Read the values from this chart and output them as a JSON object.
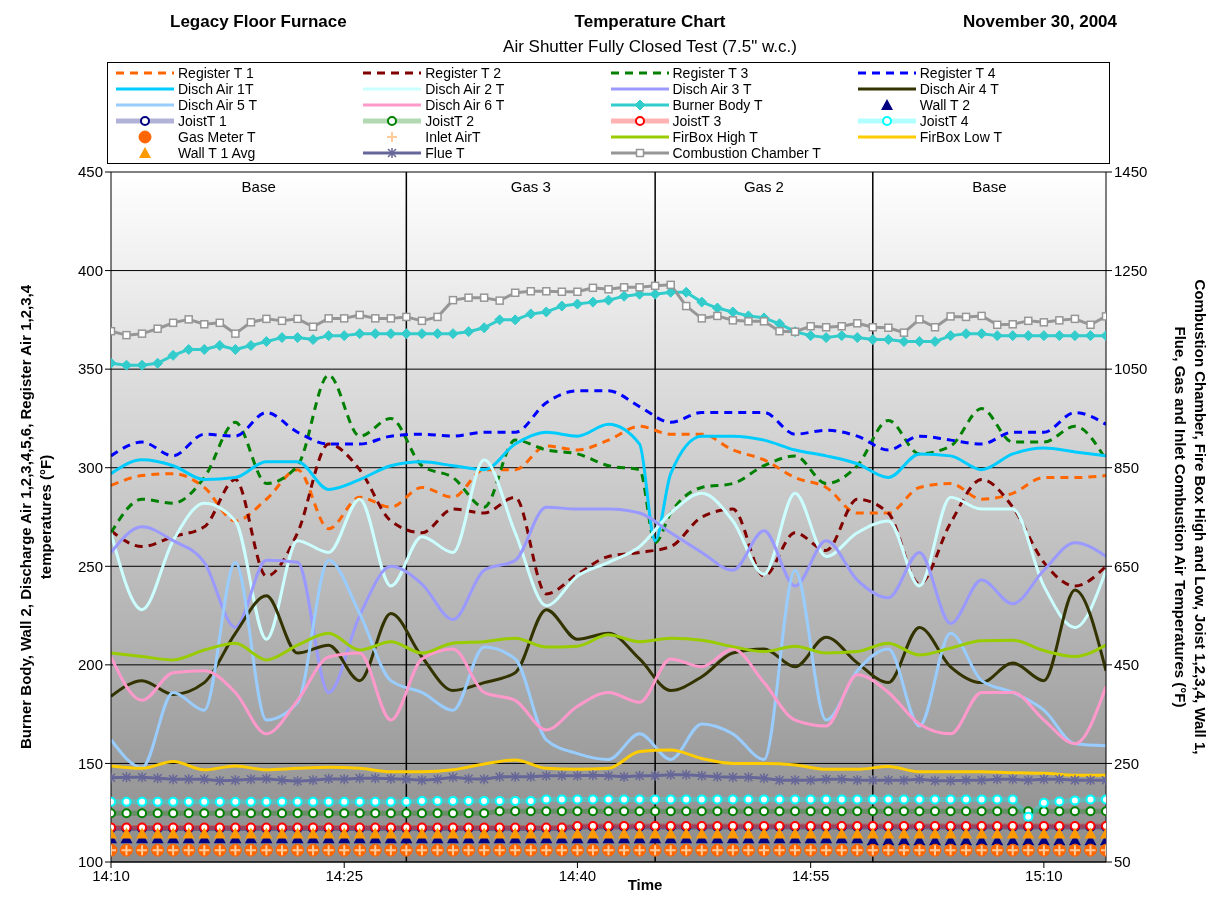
{
  "chart_data": {
    "type": "line",
    "title": "Temperature Chart",
    "subtitle": "Air Shutter Fully Closed Test (7.5\" w.c.)",
    "annotations": [
      "Legacy Floor Furnace",
      "November 30, 2004",
      "Base",
      "Gas 3",
      "Gas 2",
      "Base"
    ],
    "xlabel": "Time",
    "ylabel": "Burner Body, Wall 2, Discharge Air 1,2,3,4,5,6, Register Air 1,2,3,4 temperatures (°F)",
    "y2label": "Combustion Chamber, Fire Box High and Low, Joist 1,2,3,4, Wall 1, Flue, Gas and Inlet Combustion Air Temperatures (°F)",
    "x": [
      14.1667,
      14.1833,
      14.2,
      14.2167,
      14.2333,
      14.25,
      14.2667,
      14.2833,
      14.3,
      14.3167,
      14.3333,
      14.35,
      14.3667,
      14.3833,
      14.4,
      14.4167,
      14.4333,
      14.45,
      14.4667,
      14.4833,
      14.5,
      14.5167,
      14.5333,
      14.55,
      14.5667,
      14.5833,
      14.6,
      14.6167,
      14.6333,
      14.65,
      14.6667,
      14.6833,
      14.7,
      14.7167,
      14.7333,
      14.75,
      14.7667,
      14.7833,
      14.8,
      14.8167,
      14.8333,
      14.85,
      14.8667,
      14.8833,
      14.9,
      14.9167,
      14.9333,
      14.95,
      14.9667,
      14.9833,
      15,
      15.0167,
      15.0333,
      15.05,
      15.0667,
      15.0833,
      15.1,
      15.1167,
      15.1333,
      15.15,
      15.1667,
      15.1833,
      15.2,
      15.2167,
      15.2333
    ],
    "xlim": [
      14.1667,
      15.2333
    ],
    "xticks": [
      {
        "value": 14.1667,
        "label": "14:10"
      },
      {
        "value": 14.4167,
        "label": "14:25"
      },
      {
        "value": 14.6667,
        "label": "14:40"
      },
      {
        "value": 14.9167,
        "label": "14:55"
      },
      {
        "value": 15.1667,
        "label": "15:10"
      }
    ],
    "ylim": [
      100,
      450
    ],
    "yticks": [
      100,
      150,
      200,
      250,
      300,
      350,
      400,
      450
    ],
    "y2lim": [
      50,
      1450
    ],
    "y2ticks": [
      50,
      250,
      450,
      650,
      850,
      1050,
      1250,
      1450
    ],
    "grid": "y",
    "legend": "top",
    "ref_lines": [
      {
        "axis": "x",
        "value": 14.4833
      },
      {
        "axis": "x",
        "value": 14.75
      },
      {
        "axis": "x",
        "value": 14.9833
      }
    ],
    "series": [
      {
        "name": "Register T 1",
        "color": "#ff6600",
        "line_style": "dashed",
        "marker": "none",
        "x": [
          14.1667,
          14.2,
          14.2333,
          14.2667,
          14.3,
          14.3333,
          14.3667,
          14.4,
          14.4333,
          14.4667,
          14.5,
          14.5333,
          14.5667,
          14.6,
          14.6333,
          14.6667,
          14.7,
          14.7333,
          14.7667,
          14.8,
          14.8333,
          14.8667,
          14.9,
          14.9333,
          14.9667,
          15,
          15.0333,
          15.0667,
          15.1,
          15.1333,
          15.1667,
          15.2,
          15.2333
        ],
        "values": [
          291,
          296,
          297,
          290,
          273,
          284,
          299,
          269,
          285,
          280,
          290,
          285,
          299,
          299,
          311,
          309,
          314,
          321,
          317,
          317,
          309,
          304,
          295,
          290,
          277,
          277,
          290,
          292,
          284,
          287,
          295,
          295,
          296
        ]
      },
      {
        "name": "Register T 2",
        "color": "#800000",
        "line_style": "dashed",
        "marker": "none",
        "x": [
          14.1667,
          14.2,
          14.2333,
          14.2667,
          14.3,
          14.3333,
          14.3667,
          14.4,
          14.4333,
          14.4667,
          14.5,
          14.5333,
          14.5667,
          14.6,
          14.6333,
          14.6667,
          14.7,
          14.7333,
          14.7667,
          14.8,
          14.8333,
          14.8667,
          14.9,
          14.9333,
          14.9667,
          15,
          15.0333,
          15.0667,
          15.1,
          15.1333,
          15.1667,
          15.2,
          15.2333
        ],
        "values": [
          268,
          260,
          265,
          270,
          294,
          245,
          267,
          312,
          299,
          273,
          267,
          279,
          277,
          285,
          236,
          246,
          255,
          257,
          260,
          275,
          279,
          245,
          267,
          258,
          284,
          277,
          241,
          272,
          294,
          280,
          252,
          240,
          250
        ]
      },
      {
        "name": "Register T 3",
        "color": "#008000",
        "line_style": "dashed",
        "marker": "none",
        "x": [
          14.1667,
          14.2,
          14.2333,
          14.2667,
          14.3,
          14.3333,
          14.3667,
          14.4,
          14.4333,
          14.4667,
          14.5,
          14.5333,
          14.5667,
          14.6,
          14.6333,
          14.6667,
          14.7,
          14.7333,
          14.75,
          14.7667,
          14.8,
          14.8333,
          14.8667,
          14.9,
          14.9333,
          14.9667,
          15,
          15.0333,
          15.0667,
          15.1,
          15.1333,
          15.1667,
          15.2,
          15.2333
        ],
        "values": [
          267,
          284,
          282,
          295,
          323,
          292,
          301,
          347,
          316,
          325,
          301,
          295,
          280,
          314,
          309,
          307,
          301,
          299,
          262,
          277,
          290,
          292,
          301,
          306,
          292,
          301,
          324,
          307,
          311,
          330,
          313,
          313,
          321,
          304
        ]
      },
      {
        "name": "Register T 4",
        "color": "#0000ff",
        "line_style": "dashed",
        "marker": "none",
        "x": [
          14.1667,
          14.2,
          14.2333,
          14.2667,
          14.3,
          14.3333,
          14.3667,
          14.4,
          14.4333,
          14.4667,
          14.5,
          14.5333,
          14.5667,
          14.6,
          14.6333,
          14.6667,
          14.7,
          14.7333,
          14.7667,
          14.8,
          14.8333,
          14.8667,
          14.9,
          14.9333,
          14.9667,
          15,
          15.0333,
          15.0667,
          15.1,
          15.1333,
          15.1667,
          15.2,
          15.2333
        ],
        "values": [
          306,
          313,
          306,
          317,
          316,
          328,
          318,
          312,
          312,
          316,
          317,
          316,
          318,
          318,
          333,
          339,
          339,
          331,
          323,
          328,
          328,
          328,
          317,
          319,
          316,
          309,
          316,
          314,
          312,
          318,
          318,
          328,
          322
        ]
      },
      {
        "name": "Disch Air 1T",
        "color": "#00ccff",
        "marker": "none",
        "x": [
          14.1667,
          14.2,
          14.2333,
          14.2667,
          14.3,
          14.3333,
          14.3667,
          14.4,
          14.4333,
          14.4667,
          14.5,
          14.5333,
          14.5667,
          14.6,
          14.6333,
          14.6667,
          14.7,
          14.7333,
          14.75,
          14.7667,
          14.8,
          14.8333,
          14.8667,
          14.9,
          14.9333,
          14.9667,
          15,
          15.0333,
          15.0667,
          15.1,
          15.1333,
          15.1667,
          15.2,
          15.2333
        ],
        "values": [
          297,
          304,
          301,
          294,
          295,
          303,
          303,
          289,
          294,
          301,
          303,
          301,
          299,
          312,
          318,
          316,
          322,
          312,
          263,
          297,
          316,
          316,
          314,
          309,
          306,
          302,
          295,
          307,
          306,
          299,
          307,
          310,
          308,
          306
        ]
      },
      {
        "name": "Disch Air 2 T",
        "color": "#ccffff",
        "marker": "none",
        "x": [
          14.1667,
          14.2,
          14.2333,
          14.2667,
          14.3,
          14.3333,
          14.3667,
          14.4,
          14.4333,
          14.4667,
          14.5,
          14.5333,
          14.5667,
          14.6,
          14.6333,
          14.6667,
          14.7,
          14.7333,
          14.7667,
          14.8,
          14.8333,
          14.8667,
          14.9,
          14.9333,
          14.9667,
          15,
          15.0333,
          15.0667,
          15.1,
          15.1333,
          15.1667,
          15.2,
          15.2333
        ],
        "values": [
          267,
          228,
          263,
          282,
          273,
          213,
          263,
          257,
          284,
          240,
          265,
          257,
          304,
          267,
          230,
          245,
          252,
          260,
          277,
          287,
          273,
          246,
          287,
          255,
          267,
          273,
          240,
          285,
          279,
          279,
          240,
          219,
          248
        ]
      },
      {
        "name": "Disch Air 3 T",
        "color": "#9999ff",
        "marker": "none",
        "x": [
          14.1667,
          14.2,
          14.2333,
          14.2667,
          14.3,
          14.3333,
          14.3667,
          14.4,
          14.4333,
          14.4667,
          14.5,
          14.5333,
          14.5667,
          14.6,
          14.6333,
          14.6667,
          14.7,
          14.7333,
          14.7667,
          14.8,
          14.8333,
          14.8667,
          14.9,
          14.9333,
          14.9667,
          15,
          15.0333,
          15.0667,
          15.1,
          15.1333,
          15.1667,
          15.2,
          15.2333
        ],
        "values": [
          257,
          270,
          263,
          252,
          219,
          253,
          252,
          186,
          225,
          250,
          241,
          223,
          248,
          253,
          280,
          279,
          279,
          277,
          267,
          257,
          248,
          268,
          240,
          263,
          243,
          234,
          257,
          221,
          243,
          231,
          248,
          262,
          255
        ]
      },
      {
        "name": "Disch Air 4 T",
        "color": "#333300",
        "marker": "none",
        "x": [
          14.1667,
          14.2,
          14.2333,
          14.2667,
          14.3,
          14.3333,
          14.3667,
          14.4,
          14.4333,
          14.4667,
          14.5,
          14.5333,
          14.5667,
          14.6,
          14.6333,
          14.6667,
          14.7,
          14.7333,
          14.7667,
          14.8,
          14.8333,
          14.8667,
          14.9,
          14.9333,
          14.9667,
          15,
          15.0333,
          15.0667,
          15.1,
          15.1333,
          15.1667,
          15.2,
          15.2333
        ],
        "values": [
          184,
          192,
          185,
          191,
          216,
          235,
          206,
          210,
          192,
          226,
          204,
          187,
          191,
          196,
          228,
          213,
          216,
          203,
          187,
          194,
          206,
          208,
          199,
          214,
          201,
          191,
          219,
          199,
          191,
          201,
          192,
          238,
          197
        ]
      },
      {
        "name": "Disch Air 5 T",
        "color": "#99ccff",
        "marker": "none",
        "x": [
          14.1667,
          14.2,
          14.2333,
          14.2667,
          14.3,
          14.3333,
          14.3667,
          14.4,
          14.4333,
          14.4667,
          14.5,
          14.5333,
          14.5667,
          14.6,
          14.6333,
          14.6667,
          14.7,
          14.7333,
          14.7667,
          14.8,
          14.8333,
          14.8667,
          14.9,
          14.9333,
          14.9667,
          15,
          15.0333,
          15.0667,
          15.1,
          15.1333,
          15.1667,
          15.2,
          15.2333
        ],
        "values": [
          162,
          148,
          186,
          177,
          252,
          172,
          181,
          253,
          226,
          192,
          186,
          177,
          209,
          203,
          162,
          155,
          152,
          165,
          152,
          170,
          165,
          152,
          248,
          172,
          197,
          208,
          169,
          216,
          192,
          186,
          177,
          160,
          159
        ]
      },
      {
        "name": "Disch Air 6 T",
        "color": "#ff99cc",
        "marker": "none",
        "x": [
          14.1667,
          14.2,
          14.2333,
          14.2667,
          14.3,
          14.3333,
          14.3667,
          14.4,
          14.4333,
          14.4667,
          14.5,
          14.5333,
          14.5667,
          14.6,
          14.6333,
          14.6667,
          14.7,
          14.7333,
          14.7667,
          14.8,
          14.8333,
          14.8667,
          14.9,
          14.9333,
          14.9667,
          15,
          15.0333,
          15.0667,
          15.1,
          15.1333,
          15.1667,
          15.2,
          15.2333
        ],
        "values": [
          204,
          182,
          196,
          197,
          186,
          165,
          182,
          204,
          206,
          172,
          203,
          208,
          186,
          182,
          167,
          179,
          186,
          181,
          203,
          199,
          208,
          191,
          172,
          169,
          195,
          186,
          170,
          165,
          186,
          186,
          172,
          160,
          189
        ]
      },
      {
        "name": "Burner Body T",
        "color": "#33cccc",
        "marker": "diamond",
        "values": [
          353,
          352,
          352,
          353,
          357,
          360,
          360,
          362,
          360,
          362,
          364,
          366,
          366,
          365,
          367,
          367,
          368,
          368,
          368,
          368,
          368,
          368,
          368,
          369,
          371,
          375,
          375,
          378,
          379,
          382,
          383,
          384,
          385,
          387,
          388,
          388,
          389,
          389,
          384,
          381,
          379,
          377,
          376,
          373,
          369,
          367,
          366,
          367,
          366,
          365,
          365,
          364,
          364,
          364,
          367,
          368,
          368,
          367,
          367,
          367,
          367,
          367,
          367,
          367,
          367
        ]
      },
      {
        "name": "Wall T 2",
        "type": "scatter",
        "color": "#000080",
        "marker": "triangle",
        "values": [
          112,
          112,
          112,
          112,
          112,
          112,
          112,
          112,
          112,
          112,
          112,
          112,
          112,
          112,
          112,
          112,
          112,
          112,
          112,
          112,
          112,
          112,
          112,
          112,
          112,
          112,
          112,
          112,
          112,
          112,
          112,
          112,
          112,
          112,
          112,
          112,
          112,
          112,
          112,
          112,
          112,
          112,
          112,
          112,
          112,
          112,
          112,
          112,
          112,
          111,
          111,
          111,
          111,
          111,
          111,
          111,
          111,
          111,
          111,
          111,
          111,
          111,
          111,
          111,
          111
        ]
      },
      {
        "name": "JoistT 1",
        "color": "#000080",
        "marker": "circle",
        "axis": "y2",
        "values": [
          118,
          118,
          118,
          118,
          118,
          118,
          118,
          118,
          118,
          118,
          118,
          118,
          118,
          118,
          118,
          118,
          118,
          118,
          118,
          118,
          118,
          118,
          118,
          118,
          118,
          118,
          118,
          118,
          118,
          118,
          121,
          121,
          121,
          121,
          121,
          121,
          121,
          121,
          121,
          121,
          121,
          121,
          121,
          121,
          121,
          121,
          121,
          121,
          121,
          121,
          121,
          121,
          121,
          121,
          121,
          121,
          121,
          121,
          121,
          121,
          121,
          121,
          121,
          121,
          121
        ]
      },
      {
        "name": "JoistT 2",
        "color": "#008000",
        "marker": "circle",
        "axis": "y2",
        "values": [
          149,
          149,
          149,
          149,
          149,
          149,
          149,
          149,
          149,
          149,
          149,
          149,
          149,
          149,
          149,
          149,
          149,
          149,
          149,
          149,
          149,
          149,
          149,
          149,
          149,
          153,
          153,
          153,
          153,
          153,
          153,
          153,
          153,
          153,
          153,
          153,
          153,
          153,
          153,
          153,
          153,
          153,
          153,
          153,
          153,
          153,
          153,
          153,
          153,
          153,
          153,
          153,
          153,
          153,
          153,
          153,
          153,
          153,
          153,
          153,
          153,
          153,
          153,
          153,
          153
        ]
      },
      {
        "name": "JoistT 3",
        "color": "#ff0000",
        "marker": "circle",
        "axis": "y2",
        "values": [
          120,
          120,
          120,
          120,
          120,
          120,
          120,
          120,
          120,
          120,
          120,
          120,
          120,
          120,
          120,
          120,
          120,
          120,
          120,
          120,
          120,
          120,
          120,
          120,
          120,
          120,
          120,
          120,
          120,
          120,
          123,
          123,
          123,
          123,
          123,
          123,
          123,
          123,
          123,
          123,
          123,
          123,
          123,
          123,
          123,
          123,
          123,
          123,
          123,
          123,
          123,
          123,
          123,
          123,
          123,
          123,
          123,
          123,
          123,
          123,
          123,
          123,
          123,
          123,
          123
        ]
      },
      {
        "name": "JoistT 4",
        "color": "#00ffff",
        "marker": "circle",
        "axis": "y2",
        "values": [
          172,
          172,
          172,
          172,
          172,
          172,
          172,
          172,
          172,
          172,
          172,
          172,
          172,
          172,
          172,
          172,
          172,
          172,
          172,
          172,
          174,
          174,
          174,
          174,
          174,
          174,
          174,
          174,
          177,
          177,
          177,
          177,
          177,
          177,
          177,
          177,
          177,
          177,
          177,
          177,
          177,
          177,
          177,
          177,
          177,
          177,
          177,
          177,
          177,
          177,
          177,
          177,
          177,
          177,
          177,
          177,
          177,
          177,
          177,
          142,
          170,
          173,
          175,
          177,
          177
        ]
      },
      {
        "name": "Gas Meter T",
        "type": "scatter",
        "color": "#ff6600",
        "marker": "circle",
        "axis": "y2",
        "values": [
          74,
          74,
          74,
          74,
          74,
          74,
          74,
          74,
          74,
          74,
          74,
          74,
          74,
          74,
          74,
          74,
          74,
          74,
          74,
          74,
          74,
          74,
          74,
          74,
          74,
          74,
          74,
          74,
          74,
          74,
          74,
          74,
          74,
          74,
          74,
          74,
          74,
          74,
          74,
          74,
          74,
          74,
          74,
          74,
          74,
          74,
          74,
          74,
          74,
          74,
          74,
          74,
          74,
          74,
          74,
          74,
          74,
          74,
          74,
          74,
          74,
          74,
          74,
          74,
          74
        ]
      },
      {
        "name": "Inlet AirT",
        "type": "scatter",
        "color": "#ffcc99",
        "marker": "cross",
        "axis": "y2",
        "values": [
          74,
          74,
          74,
          74,
          74,
          74,
          74,
          74,
          74,
          74,
          74,
          74,
          74,
          74,
          74,
          74,
          74,
          74,
          74,
          74,
          74,
          74,
          74,
          74,
          74,
          74,
          74,
          74,
          74,
          74,
          74,
          74,
          74,
          74,
          74,
          74,
          74,
          74,
          74,
          74,
          74,
          74,
          74,
          74,
          74,
          74,
          74,
          74,
          74,
          74,
          74,
          74,
          74,
          74,
          74,
          74,
          74,
          74,
          74,
          74,
          74,
          74,
          74,
          74,
          74
        ]
      },
      {
        "name": "FirBox High T",
        "color": "#99cc00",
        "marker": "none",
        "axis": "y2",
        "x": [
          14.1667,
          14.2,
          14.2333,
          14.2667,
          14.3,
          14.3333,
          14.3667,
          14.4,
          14.4333,
          14.4667,
          14.5,
          14.5333,
          14.5667,
          14.6,
          14.6333,
          14.6667,
          14.7,
          14.7333,
          14.7667,
          14.8,
          14.8333,
          14.8667,
          14.9,
          14.9333,
          14.9667,
          15,
          15.0333,
          15.0667,
          15.1,
          15.1333,
          15.1667,
          15.2,
          15.2333
        ],
        "values": [
          474,
          467,
          460,
          480,
          494,
          460,
          490,
          514,
          480,
          497,
          474,
          494,
          497,
          504,
          486,
          488,
          511,
          497,
          504,
          500,
          487,
          477,
          488,
          474,
          477,
          494,
          470,
          484,
          499,
          500,
          479,
          467,
          490
        ]
      },
      {
        "name": "FirBox Low T",
        "color": "#ffcc00",
        "marker": "none",
        "axis": "y2",
        "x": [
          14.1667,
          14.2,
          14.2333,
          14.2667,
          14.3,
          14.3333,
          14.3667,
          14.4,
          14.4333,
          14.4667,
          14.5,
          14.5333,
          14.5667,
          14.6,
          14.6333,
          14.6667,
          14.7,
          14.7333,
          14.7667,
          14.8,
          14.8333,
          14.8667,
          14.9,
          14.9333,
          14.9667,
          15,
          15.0333,
          15.0667,
          15.1,
          15.1333,
          15.1667,
          15.2,
          15.2333
        ],
        "values": [
          245,
          240,
          254,
          237,
          245,
          237,
          240,
          242,
          240,
          233,
          233,
          237,
          249,
          257,
          240,
          238,
          240,
          274,
          277,
          260,
          250,
          250,
          247,
          238,
          238,
          244,
          233,
          233,
          233,
          231,
          230,
          226,
          226
        ]
      },
      {
        "name": "Wall T 1 Avg",
        "type": "scatter",
        "color": "#ff9900",
        "marker": "triangle",
        "axis": "y2",
        "values": [
          108,
          108,
          108,
          108,
          108,
          108,
          108,
          108,
          108,
          108,
          108,
          108,
          108,
          108,
          108,
          108,
          108,
          108,
          108,
          108,
          108,
          108,
          108,
          108,
          108,
          108,
          108,
          108,
          108,
          108,
          108,
          108,
          108,
          108,
          108,
          108,
          108,
          108,
          108,
          108,
          108,
          108,
          108,
          108,
          108,
          108,
          108,
          108,
          108,
          108,
          108,
          108,
          108,
          108,
          108,
          108,
          108,
          108,
          108,
          108,
          108,
          108,
          108,
          108,
          108
        ]
      },
      {
        "name": "Flue T",
        "color": "#666699",
        "marker": "cross",
        "axis": "y2",
        "values": [
          221,
          222,
          222,
          220,
          218,
          218,
          218,
          215,
          216,
          218,
          219,
          216,
          214,
          216,
          219,
          218,
          220,
          220,
          219,
          218,
          216,
          218,
          222,
          219,
          218,
          223,
          223,
          223,
          225,
          225,
          225,
          226,
          225,
          223,
          225,
          225,
          227,
          227,
          225,
          223,
          222,
          222,
          220,
          216,
          216,
          216,
          218,
          218,
          216,
          216,
          216,
          216,
          218,
          215,
          215,
          216,
          216,
          218,
          218,
          216,
          218,
          218,
          216,
          216,
          216
        ]
      },
      {
        "name": "Combustion Chamber T",
        "color": "#969696",
        "marker": "square",
        "axis": "y2",
        "values": [
          1127,
          1119,
          1122,
          1132,
          1144,
          1151,
          1141,
          1144,
          1122,
          1145,
          1152,
          1148,
          1152,
          1136,
          1153,
          1153,
          1160,
          1153,
          1153,
          1156,
          1148,
          1156,
          1190,
          1195,
          1195,
          1189,
          1205,
          1208,
          1208,
          1207,
          1207,
          1215,
          1212,
          1216,
          1216,
          1219,
          1221,
          1178,
          1153,
          1158,
          1149,
          1147,
          1147,
          1127,
          1126,
          1137,
          1135,
          1137,
          1143,
          1135,
          1134,
          1124,
          1151,
          1135,
          1157,
          1156,
          1158,
          1140,
          1141,
          1148,
          1145,
          1149,
          1152,
          1140,
          1157
        ]
      }
    ]
  }
}
